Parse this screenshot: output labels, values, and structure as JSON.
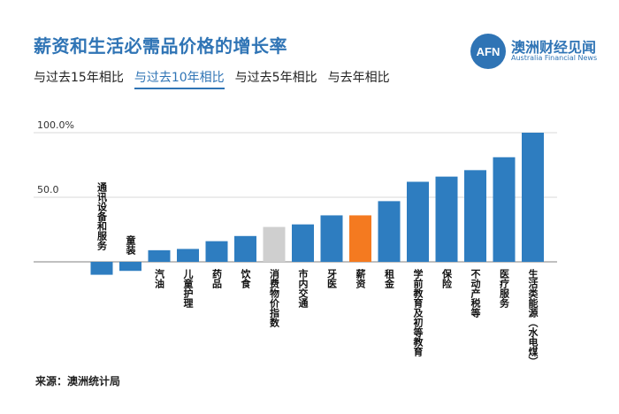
{
  "header": {
    "title": "薪资和生活必需品价格的增长率",
    "tabs": [
      {
        "label": "与过去15年相比",
        "active": false
      },
      {
        "label": "与过去10年相比",
        "active": true
      },
      {
        "label": "与过去5年相比",
        "active": false
      },
      {
        "label": "与去年相比",
        "active": false
      }
    ]
  },
  "brand": {
    "logo_text": "AFN",
    "name": "澳洲财经见闻",
    "sub": "Australia Financial News"
  },
  "source": "来源：澳洲统计局",
  "colors": {
    "bar": "#2e7dc0",
    "highlight": "#f47a20",
    "reference": "#cfcfcf",
    "grid": "#d9d9d9",
    "title": "#2f74b5"
  },
  "chart_data": {
    "type": "bar",
    "categories": [
      "通讯设备和服务",
      "童装",
      "汽油",
      "儿童护理",
      "药品",
      "饮食",
      "消费物价指数",
      "市内交通",
      "牙医",
      "薪资",
      "租金",
      "学前教育及初等教育",
      "保险",
      "不动产税等",
      "医疗服务",
      "生活类能源（水电煤）"
    ],
    "values": [
      -10,
      -7,
      9,
      10,
      16,
      20,
      27,
      29,
      36,
      36,
      47,
      62,
      66,
      71,
      81,
      100
    ],
    "highlight_index": 9,
    "reference_index": 6,
    "yticks": [
      {
        "value": 50,
        "label": "50.0"
      },
      {
        "value": 100,
        "label": "100.0%"
      }
    ],
    "ylim": [
      -15,
      105
    ],
    "grid": true
  }
}
